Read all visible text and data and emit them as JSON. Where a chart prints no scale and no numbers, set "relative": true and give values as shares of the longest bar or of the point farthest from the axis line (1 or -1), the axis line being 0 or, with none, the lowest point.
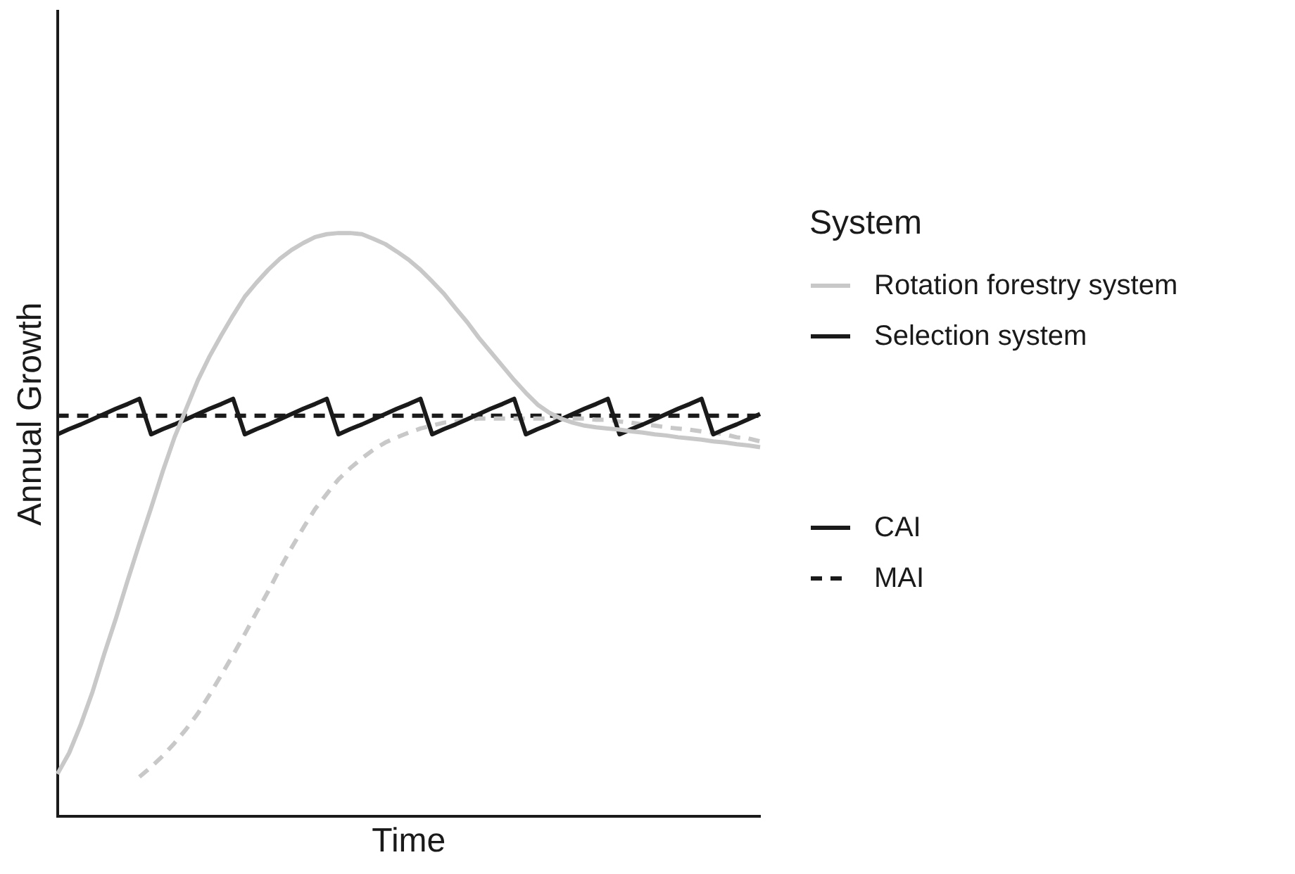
{
  "chart_data": {
    "type": "line",
    "relative": true,
    "xlabel": "Time",
    "ylabel": "Annual Growth",
    "legend_title": "System",
    "legend": "right",
    "marker": "none",
    "tick_labels": false,
    "grid": false,
    "categories": [
      null,
      null,
      null,
      null,
      null,
      null,
      null,
      null,
      null,
      null,
      null,
      null,
      null,
      null,
      null,
      null,
      null,
      null,
      null,
      null,
      null,
      null,
      null,
      null,
      null,
      null,
      null,
      null,
      null,
      null,
      null,
      null,
      null,
      null,
      null,
      null,
      null,
      null,
      null,
      null,
      null,
      null,
      null,
      null,
      null,
      null,
      null,
      null,
      null,
      null,
      null,
      null,
      null,
      null,
      null,
      null,
      null,
      null,
      null,
      null,
      null
    ],
    "series": [
      {
        "name": "Rotation forestry system",
        "color": "#c8c8c8",
        "line_style": "solid",
        "values": [
          0.073,
          0.109,
          0.158,
          0.214,
          0.279,
          0.34,
          0.405,
          0.468,
          0.529,
          0.592,
          0.65,
          0.699,
          0.748,
          0.789,
          0.825,
          0.859,
          0.891,
          0.915,
          0.937,
          0.956,
          0.971,
          0.983,
          0.993,
          0.998,
          1,
          1,
          0.998,
          0.99,
          0.981,
          0.968,
          0.954,
          0.937,
          0.917,
          0.896,
          0.871,
          0.847,
          0.82,
          0.796,
          0.772,
          0.748,
          0.726,
          0.706,
          0.692,
          0.682,
          0.675,
          0.67,
          0.667,
          0.665,
          0.663,
          0.66,
          0.658,
          0.655,
          0.653,
          0.65,
          0.648,
          0.646,
          0.643,
          0.641,
          0.638,
          0.636,
          0.633
        ]
      },
      {
        "name": "Selection system",
        "color": "#1a1a1a",
        "line_style": "solid",
        "values": [
          0.655,
          0.664,
          0.672,
          0.681,
          0.69,
          0.699,
          0.707,
          0.716,
          0.655,
          0.664,
          0.672,
          0.681,
          0.69,
          0.699,
          0.707,
          0.716,
          0.655,
          0.664,
          0.672,
          0.681,
          0.69,
          0.699,
          0.707,
          0.716,
          0.655,
          0.664,
          0.672,
          0.681,
          0.69,
          0.699,
          0.707,
          0.716,
          0.655,
          0.664,
          0.672,
          0.681,
          0.69,
          0.699,
          0.707,
          0.716,
          0.655,
          0.664,
          0.672,
          0.681,
          0.69,
          0.699,
          0.707,
          0.716,
          0.655,
          0.664,
          0.672,
          0.681,
          0.69,
          0.699,
          0.707,
          0.716,
          0.655,
          0.664,
          0.672,
          0.681,
          0.69
        ]
      },
      {
        "color": "#c8c8c8",
        "line_style": "dashed",
        "values": [
          null,
          null,
          null,
          null,
          null,
          null,
          null,
          0.068,
          0.085,
          0.104,
          0.126,
          0.15,
          0.177,
          0.209,
          0.243,
          0.277,
          0.313,
          0.35,
          0.386,
          0.425,
          0.461,
          0.495,
          0.527,
          0.553,
          0.578,
          0.597,
          0.614,
          0.629,
          0.641,
          0.65,
          0.658,
          0.665,
          0.67,
          0.675,
          0.677,
          0.68,
          0.682,
          0.682,
          0.682,
          0.682,
          0.682,
          0.682,
          0.682,
          0.682,
          0.682,
          0.682,
          0.68,
          0.68,
          0.677,
          0.675,
          0.672,
          0.67,
          0.667,
          0.665,
          0.663,
          0.66,
          0.658,
          0.655,
          0.65,
          0.648,
          0.643
        ]
      },
      {
        "color": "#1a1a1a",
        "line_style": "dashed",
        "values": [
          0.687,
          0.687,
          0.687,
          0.687,
          0.687,
          0.687,
          0.687,
          0.687,
          0.687,
          0.687,
          0.687,
          0.687,
          0.687,
          0.687,
          0.687,
          0.687,
          0.687,
          0.687,
          0.687,
          0.687,
          0.687,
          0.687,
          0.687,
          0.687,
          0.687,
          0.687,
          0.687,
          0.687,
          0.687,
          0.687,
          0.687,
          0.687,
          0.687,
          0.687,
          0.687,
          0.687,
          0.687,
          0.687,
          0.687,
          0.687,
          0.687,
          0.687,
          0.687,
          0.687,
          0.687,
          0.687,
          0.687,
          0.687,
          0.687,
          0.687,
          0.687,
          0.687,
          0.687,
          0.687,
          0.687,
          0.687,
          0.687,
          0.687,
          0.687,
          0.687,
          0.687
        ]
      }
    ],
    "annotations": [
      "CAI",
      "MAI"
    ]
  }
}
